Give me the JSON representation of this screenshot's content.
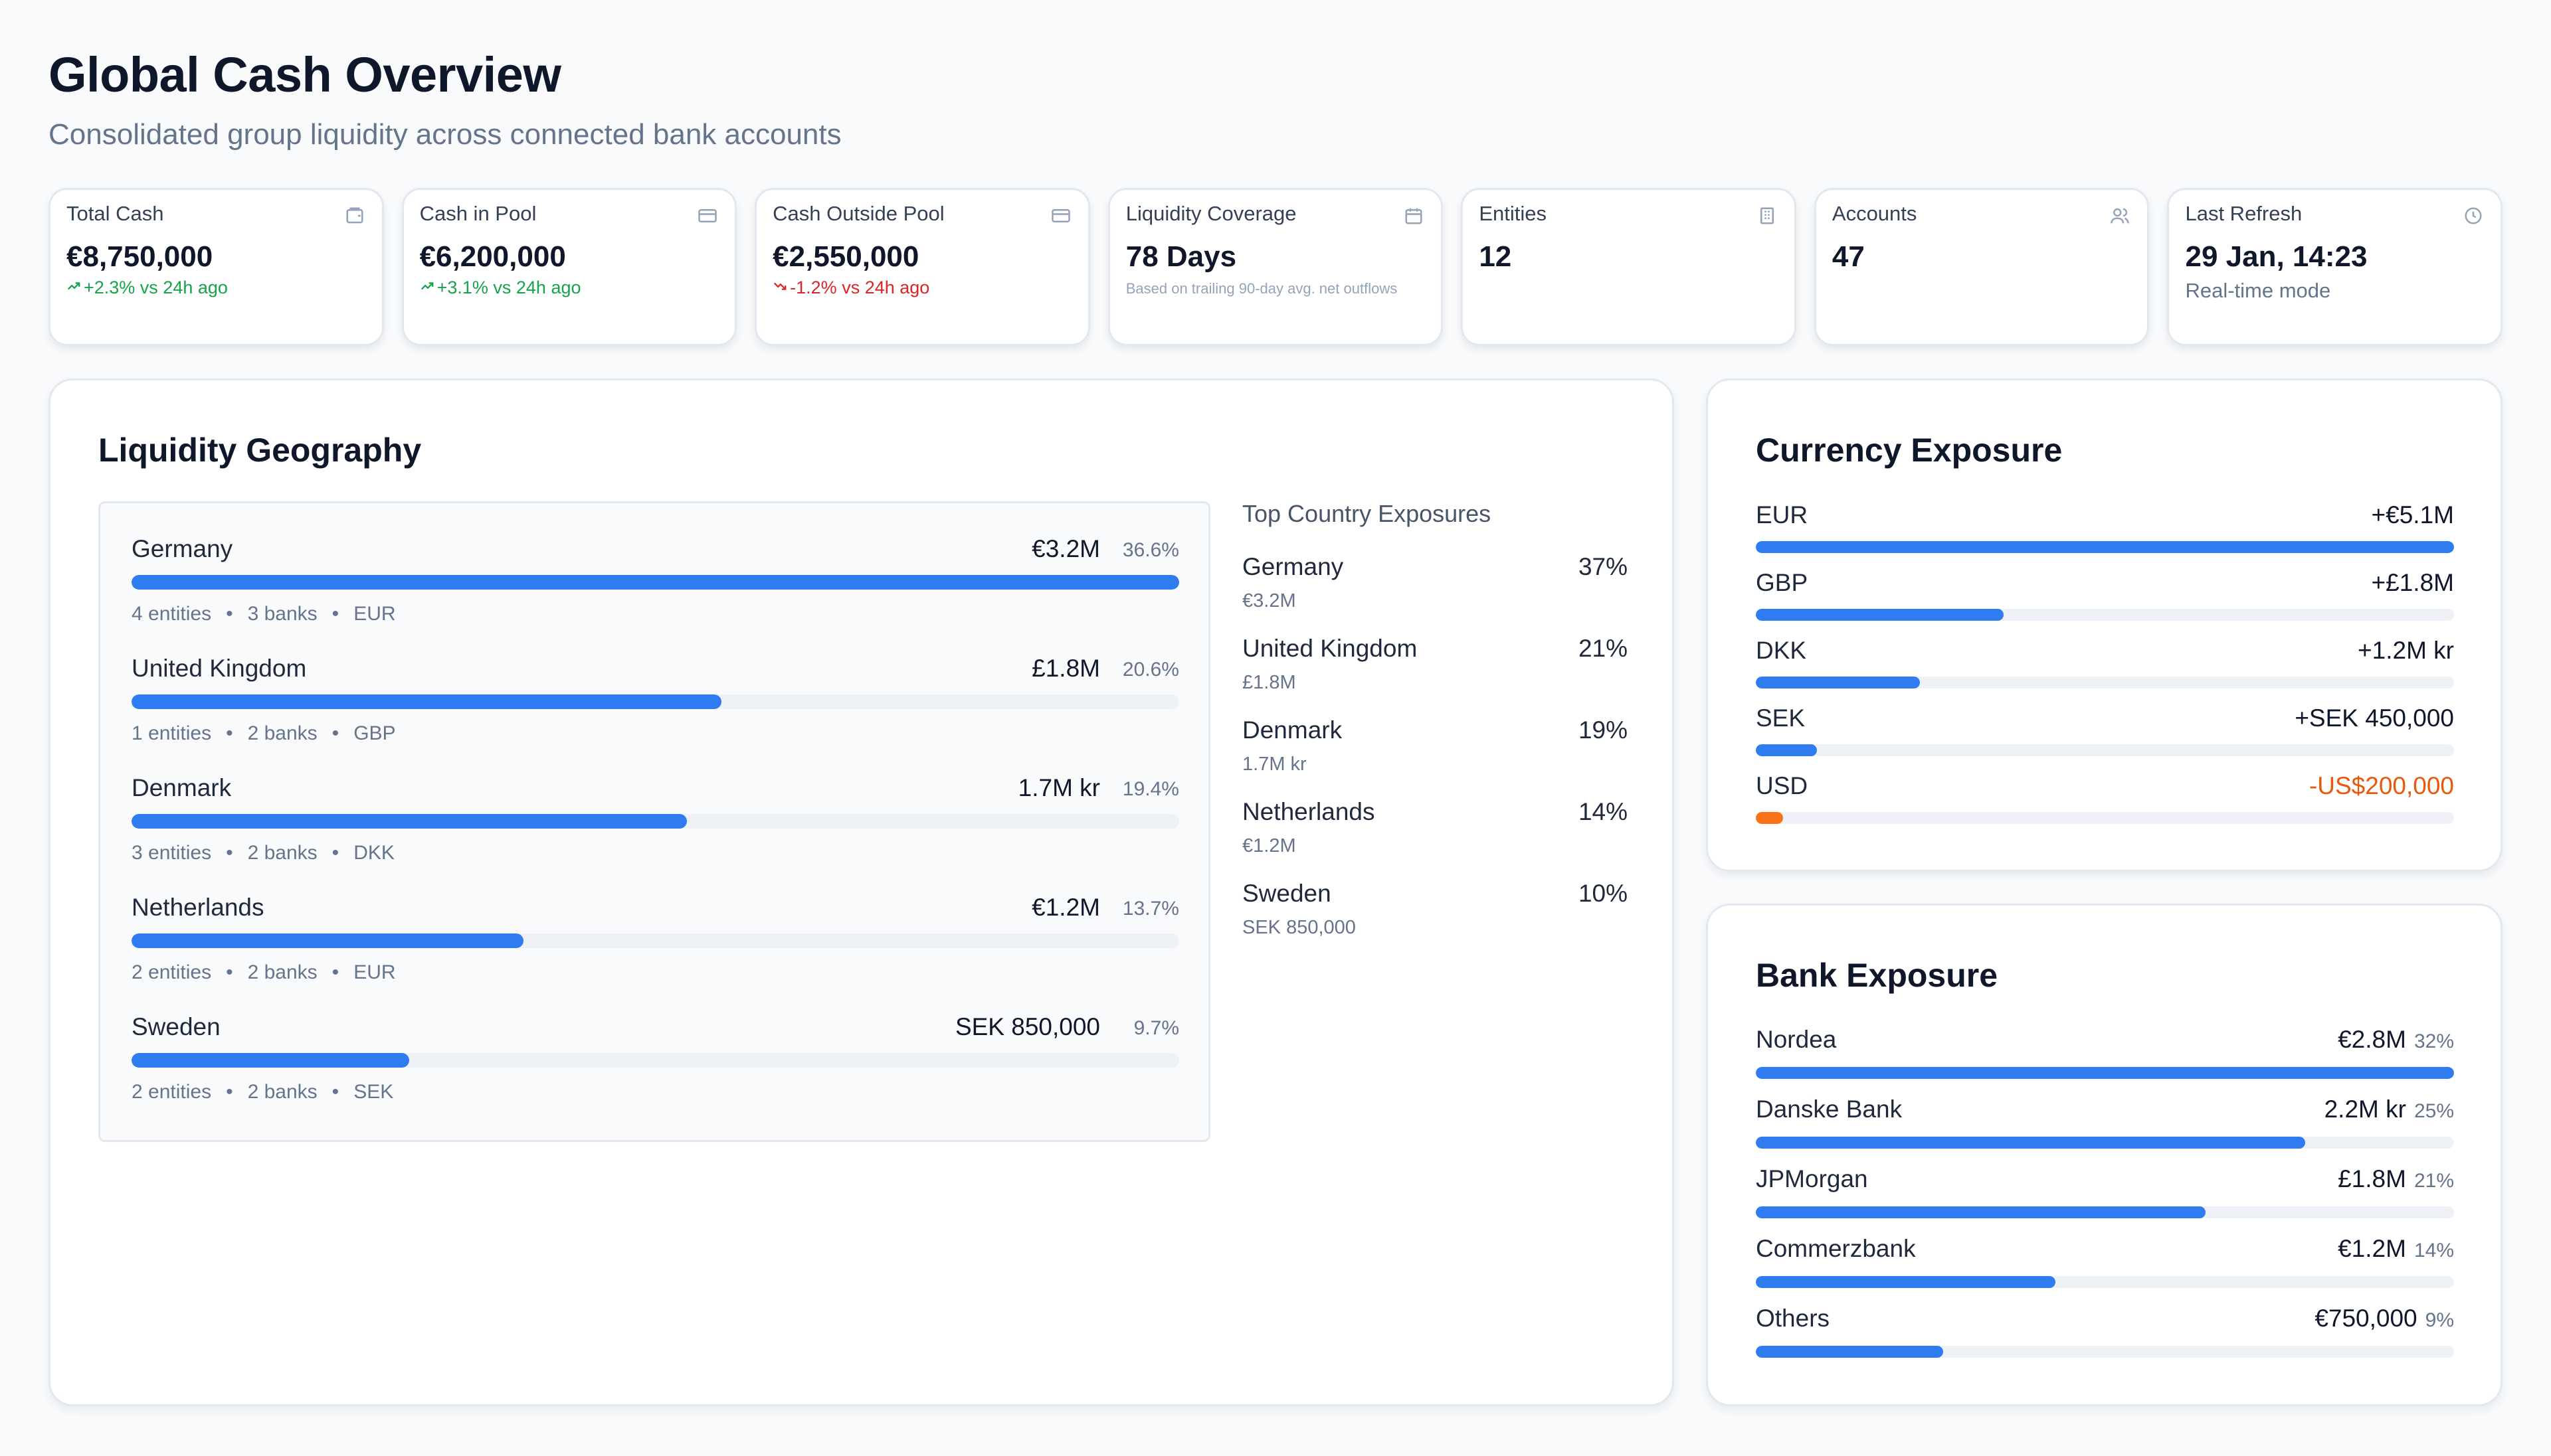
{
  "header": {
    "title": "Global Cash Overview",
    "subtitle": "Consolidated group liquidity across connected bank accounts"
  },
  "kpis": [
    {
      "label": "Total Cash",
      "value": "€8,750,000",
      "sub": "+2.3% vs 24h ago",
      "trend": "up",
      "icon": "wallet-icon"
    },
    {
      "label": "Cash in Pool",
      "value": "€6,200,000",
      "sub": "+3.1% vs 24h ago",
      "trend": "up",
      "icon": "credit-card-icon"
    },
    {
      "label": "Cash Outside Pool",
      "value": "€2,550,000",
      "sub": "-1.2% vs 24h ago",
      "trend": "down",
      "icon": "credit-card-icon"
    },
    {
      "label": "Liquidity Coverage",
      "value": "78 Days",
      "sub": "Based on trailing 90-day avg. net outflows",
      "trend": "note",
      "icon": "calendar-icon"
    },
    {
      "label": "Entities",
      "value": "12",
      "sub": "",
      "trend": "none",
      "icon": "building-icon"
    },
    {
      "label": "Accounts",
      "value": "47",
      "sub": "",
      "trend": "none",
      "icon": "users-icon"
    },
    {
      "label": "Last Refresh",
      "value": "29 Jan, 14:23",
      "sub": "Real-time mode",
      "trend": "muted",
      "icon": "clock-icon"
    }
  ],
  "geography": {
    "title": "Liquidity Geography",
    "rows": [
      {
        "country": "Germany",
        "amount": "€3.2M",
        "pct": "36.6%",
        "share": 36.6,
        "entities": "4 entities",
        "banks": "3 banks",
        "currency": "EUR"
      },
      {
        "country": "United Kingdom",
        "amount": "£1.8M",
        "pct": "20.6%",
        "share": 20.6,
        "entities": "1 entities",
        "banks": "2 banks",
        "currency": "GBP"
      },
      {
        "country": "Denmark",
        "amount": "1.7M kr",
        "pct": "19.4%",
        "share": 19.4,
        "entities": "3 entities",
        "banks": "2 banks",
        "currency": "DKK"
      },
      {
        "country": "Netherlands",
        "amount": "€1.2M",
        "pct": "13.7%",
        "share": 13.7,
        "entities": "2 entities",
        "banks": "2 banks",
        "currency": "EUR"
      },
      {
        "country": "Sweden",
        "amount": "SEK 850,000",
        "pct": "9.7%",
        "share": 9.7,
        "entities": "2 entities",
        "banks": "2 banks",
        "currency": "SEK"
      }
    ],
    "top_title": "Top Country Exposures",
    "top": [
      {
        "country": "Germany",
        "pct": "37%",
        "amount": "€3.2M"
      },
      {
        "country": "United Kingdom",
        "pct": "21%",
        "amount": "£1.8M"
      },
      {
        "country": "Denmark",
        "pct": "19%",
        "amount": "1.7M kr"
      },
      {
        "country": "Netherlands",
        "pct": "14%",
        "amount": "€1.2M"
      },
      {
        "country": "Sweden",
        "pct": "10%",
        "amount": "SEK 850,000"
      }
    ]
  },
  "currency": {
    "title": "Currency Exposure",
    "rows": [
      {
        "code": "EUR",
        "value": "+€5.1M",
        "share": 1.0,
        "negative": false
      },
      {
        "code": "GBP",
        "value": "+£1.8M",
        "share": 0.355,
        "negative": false
      },
      {
        "code": "DKK",
        "value": "+1.2M kr",
        "share": 0.235,
        "negative": false
      },
      {
        "code": "SEK",
        "value": "+SEK 450,000",
        "share": 0.088,
        "negative": false
      },
      {
        "code": "USD",
        "value": "-US$200,000",
        "share": 0.039,
        "negative": true
      }
    ]
  },
  "bank": {
    "title": "Bank Exposure",
    "rows": [
      {
        "name": "Nordea",
        "amount": "€2.8M",
        "pct": "32%",
        "share": 1.0
      },
      {
        "name": "Danske Bank",
        "amount": "2.2M kr",
        "pct": "25%",
        "share": 0.787
      },
      {
        "name": "JPMorgan",
        "amount": "£1.8M",
        "pct": "21%",
        "share": 0.644
      },
      {
        "name": "Commerzbank",
        "amount": "€1.2M",
        "pct": "14%",
        "share": 0.429
      },
      {
        "name": "Others",
        "amount": "€750,000",
        "pct": "9%",
        "share": 0.268
      }
    ]
  },
  "colors": {
    "accent": "#2f7bf0",
    "up": "#16a34a",
    "down": "#dc2626",
    "negative": "#ea580c"
  }
}
